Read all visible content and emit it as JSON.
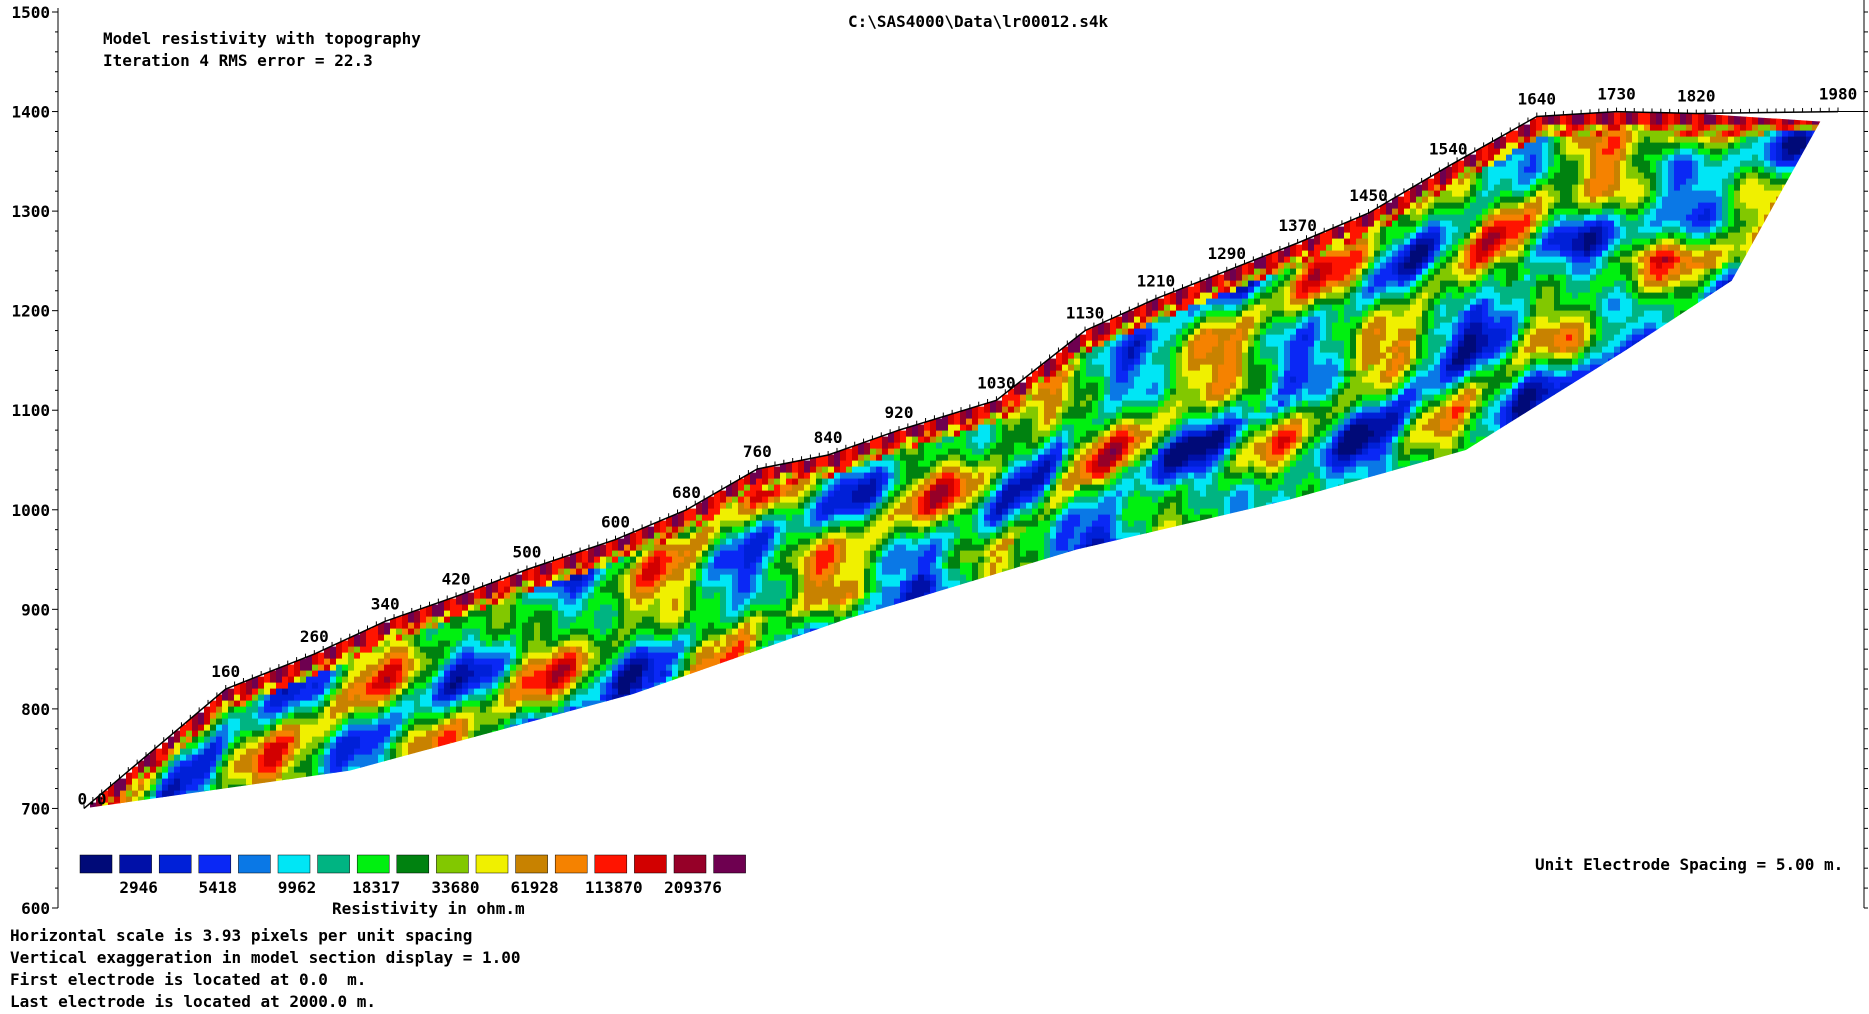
{
  "chart_data": {
    "type": "heatmap",
    "file_path": "C:\\SAS4000\\Data\\lr00012.s4k",
    "title": "Model resistivity with topography",
    "subtitle": "Iteration 4 RMS error = 22.3",
    "y_ticks": [
      "1500",
      "1400",
      "1300",
      "1200",
      "1100",
      "1000",
      "900",
      "800",
      "700",
      "600"
    ],
    "ylim": [
      600,
      1500
    ],
    "grid": false,
    "surface_points": [
      {
        "x": 0,
        "elevation": 700,
        "label": "0.0"
      },
      {
        "x": 160,
        "elevation": 820,
        "label": "160"
      },
      {
        "x": 260,
        "elevation": 855,
        "label": "260"
      },
      {
        "x": 340,
        "elevation": 888,
        "label": "340"
      },
      {
        "x": 420,
        "elevation": 913,
        "label": "420"
      },
      {
        "x": 500,
        "elevation": 940,
        "label": "500"
      },
      {
        "x": 600,
        "elevation": 970,
        "label": "600"
      },
      {
        "x": 680,
        "elevation": 1000,
        "label": "680"
      },
      {
        "x": 760,
        "elevation": 1041,
        "label": "760"
      },
      {
        "x": 840,
        "elevation": 1055,
        "label": "840"
      },
      {
        "x": 920,
        "elevation": 1080,
        "label": "920"
      },
      {
        "x": 1030,
        "elevation": 1110,
        "label": "1030"
      },
      {
        "x": 1130,
        "elevation": 1180,
        "label": "1130"
      },
      {
        "x": 1210,
        "elevation": 1212,
        "label": "1210"
      },
      {
        "x": 1290,
        "elevation": 1240,
        "label": "1290"
      },
      {
        "x": 1370,
        "elevation": 1268,
        "label": "1370"
      },
      {
        "x": 1450,
        "elevation": 1298,
        "label": "1450"
      },
      {
        "x": 1540,
        "elevation": 1345,
        "label": "1540"
      },
      {
        "x": 1640,
        "elevation": 1395,
        "label": "1640"
      },
      {
        "x": 1730,
        "elevation": 1400,
        "label": "1730"
      },
      {
        "x": 1820,
        "elevation": 1398,
        "label": "1820"
      },
      {
        "x": 1980,
        "elevation": 1400,
        "label": "1980"
      }
    ],
    "model_bottom": [
      {
        "x": 0,
        "elevation": 700
      },
      {
        "x": 300,
        "elevation": 738
      },
      {
        "x": 620,
        "elevation": 815
      },
      {
        "x": 860,
        "elevation": 890
      },
      {
        "x": 1120,
        "elevation": 960
      },
      {
        "x": 1360,
        "elevation": 1010
      },
      {
        "x": 1560,
        "elevation": 1060
      },
      {
        "x": 1740,
        "elevation": 1160
      },
      {
        "x": 1860,
        "elevation": 1230
      },
      {
        "x": 1960,
        "elevation": 1390
      }
    ],
    "colorscale": {
      "label": "Resistivity in ohm.m",
      "colors": [
        "#000a78",
        "#0010a8",
        "#0020d8",
        "#0a28f5",
        "#0a78e6",
        "#00e6f5",
        "#00b482",
        "#00f010",
        "#008210",
        "#82c800",
        "#f0f000",
        "#c88200",
        "#f58200",
        "#ff1400",
        "#d20000",
        "#960028",
        "#6e0050"
      ],
      "tick_labels": [
        "2946",
        "5418",
        "9962",
        "18317",
        "33680",
        "61928",
        "113870",
        "209376"
      ]
    },
    "electrode_spacing_note": "Unit Electrode Spacing = 5.00 m.",
    "notes": [
      "Horizontal scale is 3.93 pixels per unit spacing",
      "Vertical exaggeration in model section display = 1.00",
      "First electrode is located at 0.0  m.",
      "Last electrode is located at 2000.0 m."
    ]
  }
}
